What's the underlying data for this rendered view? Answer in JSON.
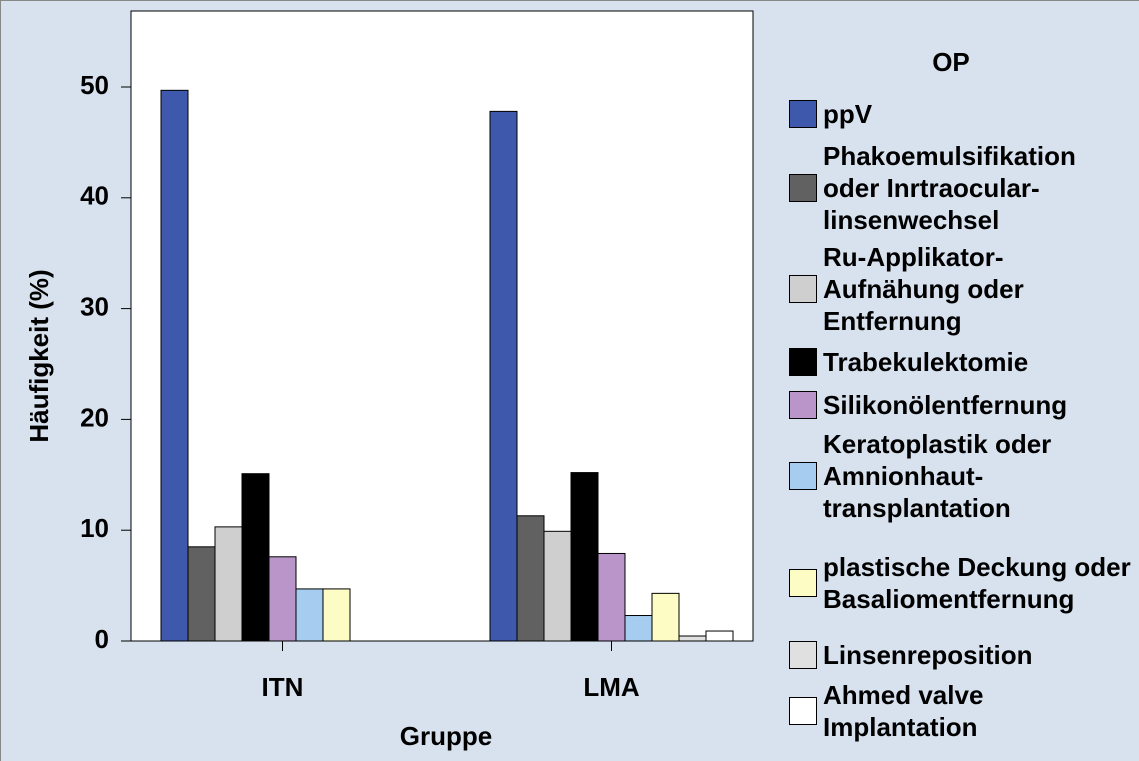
{
  "chart_data": {
    "type": "bar",
    "x_label": "Gruppe",
    "y_label": "Häufigkeit (%)",
    "legend_title": "OP",
    "categories": [
      "ITN",
      "LMA"
    ],
    "series": [
      {
        "name": "ppV",
        "color": "#3e58ac",
        "values": [
          49.7,
          47.8
        ]
      },
      {
        "name": "Phakoemulsifikation oder Inrtraocular-linsenwechsel",
        "color": "#616161",
        "values": [
          8.5,
          11.3
        ]
      },
      {
        "name": "Ru-Applikator-Aufnähung oder Entfernung",
        "color": "#cfcfcf",
        "values": [
          10.3,
          9.9
        ]
      },
      {
        "name": "Trabekulektomie",
        "color": "#000000",
        "values": [
          15.1,
          15.2
        ]
      },
      {
        "name": "Silikonölentfernung",
        "color": "#b995c9",
        "values": [
          7.6,
          7.9
        ]
      },
      {
        "name": "Keratoplastik oder Amnionhaut-transplantation",
        "color": "#a6cdf0",
        "values": [
          4.7,
          2.3
        ]
      },
      {
        "name": "plastische Deckung oder Basaliomentfernung",
        "color": "#fcfcc4",
        "values": [
          4.7,
          4.3
        ]
      },
      {
        "name": "Linsenreposition",
        "color": "#e0e0e0",
        "values": [
          null,
          0.45
        ]
      },
      {
        "name": "Ahmed valve Implantation",
        "color": "#ffffff",
        "values": [
          null,
          0.9
        ]
      }
    ],
    "ylim": [
      0,
      50
    ],
    "yticks": [
      0,
      10,
      20,
      30,
      40,
      50
    ]
  }
}
